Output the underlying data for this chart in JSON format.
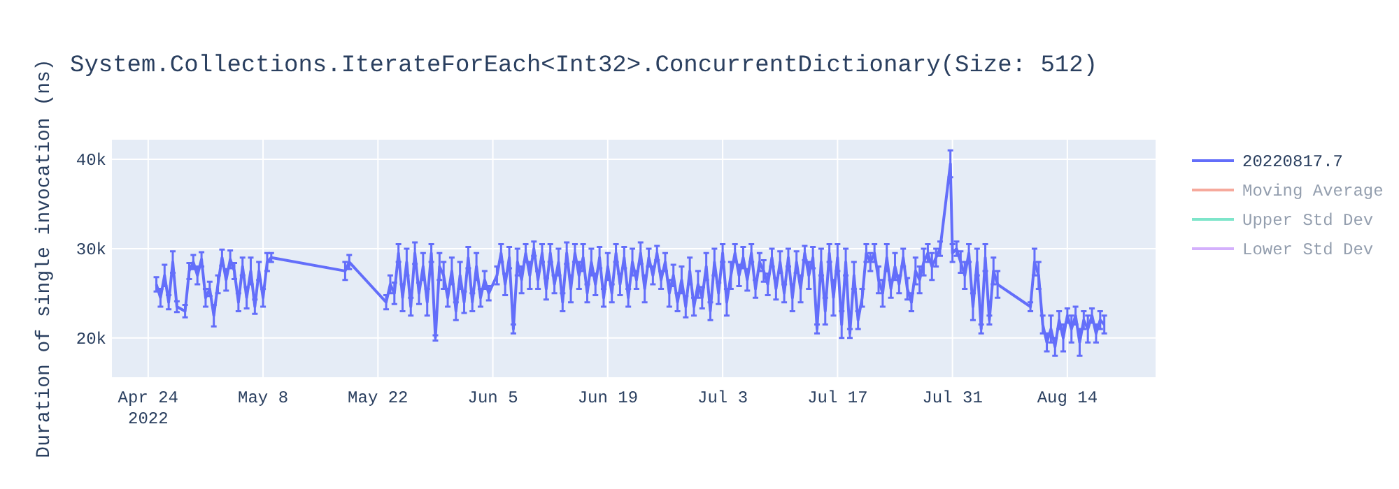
{
  "chart_data": {
    "type": "line",
    "title": "System.Collections.IterateForEach<Int32>.ConcurrentDictionary(Size: 512)",
    "ylabel": "Duration of single invocation (ns)",
    "xlim": [
      "2022-04-19T14:00",
      "2022-08-24T18:00"
    ],
    "xticks": [
      {
        "value": "2022-04-24",
        "label": "Apr 24\n2022"
      },
      {
        "value": "2022-05-08",
        "label": "May 8"
      },
      {
        "value": "2022-05-22",
        "label": "May 22"
      },
      {
        "value": "2022-06-05",
        "label": "Jun 5"
      },
      {
        "value": "2022-06-19",
        "label": "Jun 19"
      },
      {
        "value": "2022-07-03",
        "label": "Jul 3"
      },
      {
        "value": "2022-07-17",
        "label": "Jul 17"
      },
      {
        "value": "2022-07-31",
        "label": "Jul 31"
      },
      {
        "value": "2022-08-14",
        "label": "Aug 14"
      }
    ],
    "ylim": [
      15600,
      42200
    ],
    "yticks": [
      {
        "value": 20000,
        "label": "20k"
      },
      {
        "value": 30000,
        "label": "30k"
      },
      {
        "value": 40000,
        "label": "40k"
      }
    ],
    "grid": true,
    "legend": "right",
    "x": [
      "2022-04-25T00:00",
      "2022-04-25T12:00",
      "2022-04-26T00:00",
      "2022-04-26T12:00",
      "2022-04-27T00:00",
      "2022-04-27T12:00",
      "2022-04-28T12:00",
      "2022-04-29T00:00",
      "2022-04-29T12:00",
      "2022-04-30T00:00",
      "2022-04-30T12:00",
      "2022-05-01T00:00",
      "2022-05-01T12:00",
      "2022-05-02T00:00",
      "2022-05-02T12:00",
      "2022-05-03T00:00",
      "2022-05-03T12:00",
      "2022-05-04T00:00",
      "2022-05-04T12:00",
      "2022-05-05T00:00",
      "2022-05-05T12:00",
      "2022-05-06T00:00",
      "2022-05-06T12:00",
      "2022-05-07T00:00",
      "2022-05-07T12:00",
      "2022-05-08T00:00",
      "2022-05-08T12:00",
      "2022-05-09T00:00",
      "2022-05-18T00:00",
      "2022-05-18T12:00",
      "2022-05-23T00:00",
      "2022-05-23T12:00",
      "2022-05-24T00:00",
      "2022-05-24T12:00",
      "2022-05-25T00:00",
      "2022-05-25T12:00",
      "2022-05-26T00:00",
      "2022-05-26T12:00",
      "2022-05-27T00:00",
      "2022-05-27T12:00",
      "2022-05-28T00:00",
      "2022-05-28T12:00",
      "2022-05-29T00:00",
      "2022-05-29T12:00",
      "2022-05-30T00:00",
      "2022-05-30T12:00",
      "2022-05-31T00:00",
      "2022-05-31T12:00",
      "2022-06-01T00:00",
      "2022-06-01T12:00",
      "2022-06-02T00:00",
      "2022-06-02T12:00",
      "2022-06-03T00:00",
      "2022-06-03T12:00",
      "2022-06-04T00:00",
      "2022-06-04T12:00",
      "2022-06-05T12:00",
      "2022-06-06T00:00",
      "2022-06-06T12:00",
      "2022-06-07T00:00",
      "2022-06-07T12:00",
      "2022-06-08T00:00",
      "2022-06-08T12:00",
      "2022-06-09T00:00",
      "2022-06-09T12:00",
      "2022-06-10T00:00",
      "2022-06-10T12:00",
      "2022-06-11T00:00",
      "2022-06-11T12:00",
      "2022-06-12T00:00",
      "2022-06-12T12:00",
      "2022-06-13T00:00",
      "2022-06-13T12:00",
      "2022-06-14T00:00",
      "2022-06-14T12:00",
      "2022-06-15T00:00",
      "2022-06-15T12:00",
      "2022-06-16T00:00",
      "2022-06-16T12:00",
      "2022-06-17T00:00",
      "2022-06-17T12:00",
      "2022-06-18T00:00",
      "2022-06-18T12:00",
      "2022-06-19T00:00",
      "2022-06-19T12:00",
      "2022-06-20T00:00",
      "2022-06-20T12:00",
      "2022-06-21T00:00",
      "2022-06-21T12:00",
      "2022-06-22T00:00",
      "2022-06-22T12:00",
      "2022-06-23T00:00",
      "2022-06-23T12:00",
      "2022-06-24T00:00",
      "2022-06-24T12:00",
      "2022-06-25T00:00",
      "2022-06-25T12:00",
      "2022-06-26T00:00",
      "2022-06-26T12:00",
      "2022-06-27T00:00",
      "2022-06-27T12:00",
      "2022-06-28T00:00",
      "2022-06-28T12:00",
      "2022-06-29T00:00",
      "2022-06-29T12:00",
      "2022-06-30T00:00",
      "2022-06-30T12:00",
      "2022-07-01T00:00",
      "2022-07-01T12:00",
      "2022-07-02T00:00",
      "2022-07-02T12:00",
      "2022-07-03T00:00",
      "2022-07-03T12:00",
      "2022-07-04T00:00",
      "2022-07-04T12:00",
      "2022-07-05T00:00",
      "2022-07-05T12:00",
      "2022-07-06T00:00",
      "2022-07-06T12:00",
      "2022-07-07T00:00",
      "2022-07-07T12:00",
      "2022-07-08T00:00",
      "2022-07-08T12:00",
      "2022-07-09T00:00",
      "2022-07-09T12:00",
      "2022-07-10T00:00",
      "2022-07-10T12:00",
      "2022-07-11T00:00",
      "2022-07-11T12:00",
      "2022-07-12T00:00",
      "2022-07-12T12:00",
      "2022-07-13T00:00",
      "2022-07-13T12:00",
      "2022-07-14T00:00",
      "2022-07-14T12:00",
      "2022-07-15T00:00",
      "2022-07-15T12:00",
      "2022-07-16T00:00",
      "2022-07-16T12:00",
      "2022-07-17T00:00",
      "2022-07-17T12:00",
      "2022-07-18T00:00",
      "2022-07-18T12:00",
      "2022-07-19T00:00",
      "2022-07-19T12:00",
      "2022-07-20T00:00",
      "2022-07-20T12:00",
      "2022-07-21T00:00",
      "2022-07-21T12:00",
      "2022-07-22T00:00",
      "2022-07-22T12:00",
      "2022-07-23T00:00",
      "2022-07-23T12:00",
      "2022-07-24T00:00",
      "2022-07-24T12:00",
      "2022-07-25T00:00",
      "2022-07-25T12:00",
      "2022-07-26T00:00",
      "2022-07-26T12:00",
      "2022-07-27T00:00",
      "2022-07-27T12:00",
      "2022-07-28T00:00",
      "2022-07-28T12:00",
      "2022-07-29T00:00",
      "2022-07-29T12:00",
      "2022-07-30T18:00",
      "2022-07-31T00:00",
      "2022-07-31T12:00",
      "2022-08-01T00:00",
      "2022-08-01T12:00",
      "2022-08-02T00:00",
      "2022-08-02T12:00",
      "2022-08-03T00:00",
      "2022-08-03T12:00",
      "2022-08-04T00:00",
      "2022-08-04T12:00",
      "2022-08-05T00:00",
      "2022-08-05T12:00",
      "2022-08-09T12:00",
      "2022-08-10T00:00",
      "2022-08-10T12:00",
      "2022-08-11T00:00",
      "2022-08-11T12:00",
      "2022-08-12T00:00",
      "2022-08-12T12:00",
      "2022-08-13T00:00",
      "2022-08-13T12:00",
      "2022-08-14T00:00",
      "2022-08-14T12:00",
      "2022-08-15T00:00",
      "2022-08-15T12:00",
      "2022-08-16T00:00",
      "2022-08-16T12:00",
      "2022-08-17T00:00",
      "2022-08-17T12:00",
      "2022-08-18T00:00",
      "2022-08-18T12:00"
    ],
    "series": [
      {
        "name": "20220817.7",
        "color": "#636efa",
        "values": [
          26000,
          24500,
          27000,
          24000,
          28500,
          23500,
          23000,
          27500,
          28500,
          27000,
          28800,
          24500,
          25500,
          22500,
          26000,
          29000,
          26500,
          28800,
          27500,
          24000,
          28000,
          24500,
          27500,
          23500,
          27500,
          24500,
          28500,
          29000,
          27500,
          28500,
          24000,
          26000,
          25000,
          29500,
          24500,
          28500,
          23500,
          29500,
          25000,
          28000,
          24000,
          29500,
          20000,
          28000,
          27000,
          24500,
          27500,
          23000,
          27000,
          24000,
          29000,
          24000,
          28000,
          24500,
          26500,
          25000,
          27000,
          29500,
          26000,
          29000,
          21000,
          28500,
          26500,
          29500,
          27000,
          30000,
          26500,
          29500,
          25500,
          29500,
          26000,
          28500,
          24000,
          29500,
          25500,
          29500,
          27000,
          29000,
          25000,
          28500,
          26000,
          29000,
          24500,
          28000,
          25000,
          29500,
          26000,
          29000,
          24500,
          28500,
          26500,
          29500,
          25500,
          29000,
          27000,
          29500,
          26500,
          28500,
          25000,
          27000,
          24000,
          26500,
          23500,
          27500,
          23500,
          26000,
          24500,
          28000,
          23000,
          28500,
          25000,
          29500,
          24000,
          27000,
          29500,
          27000,
          29000,
          26500,
          29500,
          25500,
          28500,
          27500,
          26000,
          29000,
          25500,
          28500,
          25000,
          29000,
          24500,
          28500,
          25500,
          29500,
          27000,
          29000,
          21000,
          28500,
          23000,
          29500,
          24500,
          29000,
          21500,
          28500,
          20500,
          27000,
          22000,
          24500,
          29500,
          28500,
          29500,
          26500,
          25000,
          29000,
          25500,
          28000,
          26000,
          29000,
          25500,
          24000,
          27500,
          26500,
          28500,
          29500,
          28000,
          29000,
          30000,
          39500,
          29500,
          30000,
          28500,
          27000,
          29500,
          23500,
          28500,
          21000,
          29000,
          22000,
          27500,
          26000,
          23500,
          28500,
          27000,
          21500,
          19500,
          21000,
          19000,
          22000,
          20000,
          22500,
          21000,
          22500,
          19500,
          22000,
          21000,
          22500,
          20500,
          22000,
          21500
        ],
        "errors": [
          800,
          1000,
          1200,
          800,
          1200,
          600,
          700,
          900,
          800,
          1000,
          800,
          1000,
          800,
          1200,
          1000,
          900,
          1200,
          1000,
          900,
          1000,
          1000,
          1200,
          1500,
          800,
          1000,
          1000,
          1000,
          500,
          1000,
          800,
          800,
          1000,
          1200,
          1000,
          1500,
          1500,
          1000,
          1200,
          1200,
          1500,
          1500,
          1000,
          300,
          1500,
          1500,
          1000,
          1500,
          1000,
          1500,
          1200,
          1200,
          1000,
          1500,
          1000,
          1000,
          800,
          1000,
          1000,
          1200,
          1200,
          500,
          1500,
          1500,
          1000,
          1500,
          800,
          1000,
          1000,
          1200,
          1000,
          1000,
          1500,
          1000,
          1200,
          1500,
          1000,
          1500,
          1500,
          1000,
          1500,
          1200,
          1200,
          1000,
          1500,
          1000,
          1000,
          1200,
          1200,
          1000,
          1500,
          1000,
          1200,
          1500,
          1000,
          1000,
          800,
          1000,
          1000,
          1500,
          1200,
          1000,
          1500,
          1200,
          1500,
          1000,
          1500,
          1200,
          1500,
          1000,
          1500,
          1200,
          1000,
          1500,
          1500,
          1000,
          1200,
          1200,
          1200,
          1000,
          1000,
          1000,
          1200,
          1200,
          1000,
          1200,
          1200,
          1000,
          1000,
          1500,
          1200,
          1500,
          800,
          1500,
          1200,
          500,
          1500,
          1500,
          1000,
          2000,
          1500,
          1500,
          1500,
          500,
          1500,
          1000,
          1000,
          1000,
          1000,
          1000,
          1500,
          1500,
          1500,
          1000,
          1500,
          1000,
          1000,
          1200,
          1000,
          1500,
          1500,
          1500,
          1000,
          1500,
          1000,
          800,
          1500,
          1000,
          800,
          1200,
          1500,
          1000,
          1500,
          1500,
          500,
          1500,
          500,
          1500,
          1500,
          500,
          1500,
          1500,
          1000,
          1000,
          1500,
          1000,
          1000,
          1500,
          800,
          1500,
          1000,
          1500,
          1000,
          1500,
          800,
          1000,
          1000,
          1000
        ]
      },
      {
        "name": "Moving Average",
        "color": "#ef553b",
        "values": [
          null,
          null,
          null,
          null,
          null,
          null,
          null,
          null,
          null,
          null,
          null,
          null,
          null,
          null,
          null,
          null,
          null,
          null,
          null,
          null,
          null,
          null,
          null,
          null,
          null,
          null,
          null,
          null,
          null,
          null,
          null,
          null,
          null,
          null,
          null,
          null,
          null,
          null,
          null,
          null,
          null,
          null,
          null,
          null,
          null,
          null,
          null,
          null,
          null,
          null,
          null,
          null,
          null,
          null,
          null,
          null,
          null,
          null,
          null,
          null,
          null,
          null,
          null,
          null,
          null,
          null,
          null,
          null,
          null,
          null,
          null,
          null,
          null,
          null,
          null,
          null,
          null,
          null,
          null,
          null,
          null,
          null,
          null,
          null,
          null,
          null,
          null,
          null,
          null,
          null,
          null,
          null,
          null,
          null,
          null,
          null,
          null,
          null,
          null,
          null,
          null,
          null,
          null,
          null,
          null,
          null,
          null,
          null,
          null,
          null,
          null,
          null,
          null,
          null,
          null,
          null,
          null,
          null,
          null,
          null,
          null,
          null,
          null,
          null,
          null,
          null,
          null,
          null,
          null,
          null,
          null,
          null,
          null,
          null,
          null,
          null,
          null,
          null,
          null,
          null,
          null,
          null,
          null,
          null,
          null,
          null,
          null,
          null,
          null,
          null,
          null,
          null,
          null,
          null,
          null,
          null,
          null,
          null,
          null,
          null,
          null,
          null,
          null,
          null,
          null,
          null,
          null,
          null,
          null,
          null,
          null,
          null,
          null,
          null,
          null,
          null,
          null,
          null,
          null,
          null,
          null,
          null,
          null,
          null,
          null,
          null,
          null,
          null,
          null,
          null,
          null,
          null,
          null,
          null,
          null,
          null,
          null
        ]
      },
      {
        "name": "Upper Std Dev",
        "color": "#00cc96",
        "values": [
          null,
          null,
          null,
          null,
          null,
          null,
          null,
          null,
          null,
          null,
          null,
          null,
          null,
          null,
          null,
          null,
          null,
          null,
          null,
          null,
          null,
          null,
          null,
          null,
          null,
          null,
          null,
          null,
          null,
          null,
          null,
          null,
          null,
          null,
          null,
          null,
          null,
          null,
          null,
          null,
          null,
          null,
          null,
          null,
          null,
          null,
          null,
          null,
          null,
          null,
          null,
          null,
          null,
          null,
          null,
          null,
          null,
          null,
          null,
          null,
          null,
          null,
          null,
          null,
          null,
          null,
          null,
          null,
          null,
          null,
          null,
          null,
          null,
          null,
          null,
          null,
          null,
          null,
          null,
          null,
          null,
          null,
          null,
          null,
          null,
          null,
          null,
          null,
          null,
          null,
          null,
          null,
          null,
          null,
          null,
          null,
          null,
          null,
          null,
          null,
          null,
          null,
          null,
          null,
          null,
          null,
          null,
          null,
          null,
          null,
          null,
          null,
          null,
          null,
          null,
          null,
          null,
          null,
          null,
          null,
          null,
          null,
          null,
          null,
          null,
          null,
          null,
          null,
          null,
          null,
          null,
          null,
          null,
          null,
          null,
          null,
          null,
          null,
          null,
          null,
          null,
          null,
          null,
          null,
          null,
          null,
          null,
          null,
          null,
          null,
          null,
          null,
          null,
          null,
          null,
          null,
          null,
          null,
          null,
          null,
          null,
          null,
          null,
          null,
          null,
          null,
          null,
          null,
          null,
          null,
          null,
          null,
          null,
          null,
          null,
          null,
          null,
          null,
          null,
          null,
          null,
          null,
          null,
          null,
          null,
          null,
          null,
          null,
          null,
          null,
          null,
          null,
          null,
          null,
          null,
          null,
          null
        ]
      },
      {
        "name": "Lower Std Dev",
        "color": "#ab63fa",
        "values": [
          null,
          null,
          null,
          null,
          null,
          null,
          null,
          null,
          null,
          null,
          null,
          null,
          null,
          null,
          null,
          null,
          null,
          null,
          null,
          null,
          null,
          null,
          null,
          null,
          null,
          null,
          null,
          null,
          null,
          null,
          null,
          null,
          null,
          null,
          null,
          null,
          null,
          null,
          null,
          null,
          null,
          null,
          null,
          null,
          null,
          null,
          null,
          null,
          null,
          null,
          null,
          null,
          null,
          null,
          null,
          null,
          null,
          null,
          null,
          null,
          null,
          null,
          null,
          null,
          null,
          null,
          null,
          null,
          null,
          null,
          null,
          null,
          null,
          null,
          null,
          null,
          null,
          null,
          null,
          null,
          null,
          null,
          null,
          null,
          null,
          null,
          null,
          null,
          null,
          null,
          null,
          null,
          null,
          null,
          null,
          null,
          null,
          null,
          null,
          null,
          null,
          null,
          null,
          null,
          null,
          null,
          null,
          null,
          null,
          null,
          null,
          null,
          null,
          null,
          null,
          null,
          null,
          null,
          null,
          null,
          null,
          null,
          null,
          null,
          null,
          null,
          null,
          null,
          null,
          null,
          null,
          null,
          null,
          null,
          null,
          null,
          null,
          null,
          null,
          null,
          null,
          null,
          null,
          null,
          null,
          null,
          null,
          null,
          null,
          null,
          null,
          null,
          null,
          null,
          null,
          null,
          null,
          null,
          null,
          null,
          null,
          null,
          null,
          null,
          null,
          null,
          null,
          null,
          null,
          null,
          null,
          null,
          null,
          null,
          null,
          null,
          null,
          null,
          null,
          null,
          null,
          null,
          null,
          null,
          null,
          null,
          null,
          null,
          null,
          null,
          null,
          null,
          null,
          null,
          null,
          null,
          null
        ]
      }
    ]
  }
}
